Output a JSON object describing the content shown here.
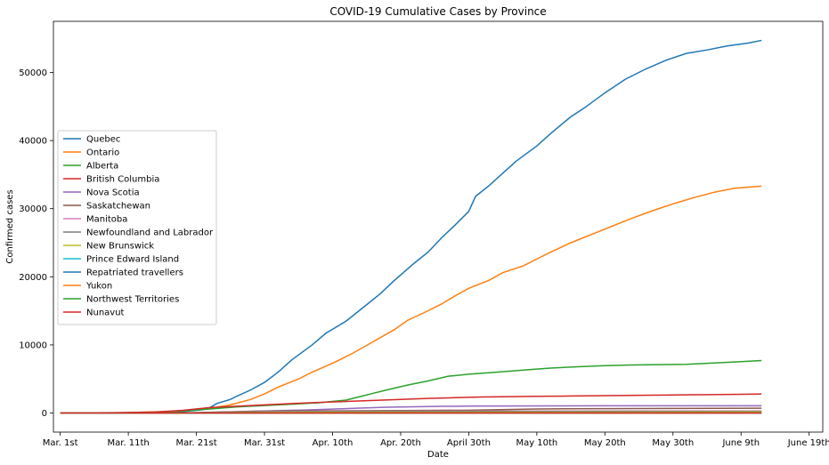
{
  "chart_data": {
    "type": "line",
    "title": "COVID-19 Cumulative Cases by Province",
    "xlabel": "Date",
    "ylabel": "Confirmed cases",
    "grid": false,
    "legend_position": "center-left",
    "xlim": [
      -1,
      112
    ],
    "ylim": [
      -2800,
      57500
    ],
    "x_ticks": [
      {
        "x": 0,
        "label": "Mar. 1st"
      },
      {
        "x": 10,
        "label": "Mar. 11th"
      },
      {
        "x": 20,
        "label": "Mar. 21st"
      },
      {
        "x": 30,
        "label": "Mar. 31st"
      },
      {
        "x": 40,
        "label": "Apr. 10th"
      },
      {
        "x": 50,
        "label": "Apr. 20th"
      },
      {
        "x": 60,
        "label": "April 30th"
      },
      {
        "x": 70,
        "label": "May 10th"
      },
      {
        "x": 80,
        "label": "May 20th"
      },
      {
        "x": 90,
        "label": "May 30th"
      },
      {
        "x": 100,
        "label": "June 9th"
      },
      {
        "x": 110,
        "label": "June 19th"
      }
    ],
    "y_ticks": [
      0,
      10000,
      20000,
      30000,
      40000,
      50000
    ],
    "series": [
      {
        "name": "Quebec",
        "color": "#1f77b4",
        "points": [
          [
            0,
            0
          ],
          [
            10,
            50
          ],
          [
            18,
            200
          ],
          [
            21,
            500
          ],
          [
            22,
            800
          ],
          [
            23,
            1400
          ],
          [
            25,
            2000
          ],
          [
            26,
            2500
          ],
          [
            28,
            3400
          ],
          [
            30,
            4500
          ],
          [
            32,
            6000
          ],
          [
            34,
            7800
          ],
          [
            37,
            10000
          ],
          [
            39,
            11700
          ],
          [
            42,
            13500
          ],
          [
            45,
            15900
          ],
          [
            47,
            17500
          ],
          [
            49,
            19400
          ],
          [
            52,
            22000
          ],
          [
            54,
            23600
          ],
          [
            56,
            25700
          ],
          [
            58,
            27600
          ],
          [
            60,
            29600
          ],
          [
            61,
            31800
          ],
          [
            63,
            33400
          ],
          [
            65,
            35200
          ],
          [
            67,
            37000
          ],
          [
            70,
            39200
          ],
          [
            72,
            41000
          ],
          [
            75,
            43500
          ],
          [
            77,
            44800
          ],
          [
            80,
            47000
          ],
          [
            83,
            49000
          ],
          [
            86,
            50500
          ],
          [
            89,
            51800
          ],
          [
            92,
            52800
          ],
          [
            95,
            53300
          ],
          [
            98,
            53900
          ],
          [
            101,
            54300
          ],
          [
            103,
            54700
          ]
        ]
      },
      {
        "name": "Ontario",
        "color": "#ff7f0e",
        "points": [
          [
            0,
            0
          ],
          [
            10,
            50
          ],
          [
            18,
            300
          ],
          [
            22,
            700
          ],
          [
            25,
            1200
          ],
          [
            28,
            2000
          ],
          [
            30,
            2800
          ],
          [
            32,
            3800
          ],
          [
            35,
            5000
          ],
          [
            37,
            6000
          ],
          [
            40,
            7300
          ],
          [
            43,
            8800
          ],
          [
            46,
            10500
          ],
          [
            49,
            12200
          ],
          [
            51,
            13600
          ],
          [
            54,
            15000
          ],
          [
            56,
            16000
          ],
          [
            58,
            17200
          ],
          [
            60,
            18300
          ],
          [
            63,
            19500
          ],
          [
            65,
            20600
          ],
          [
            68,
            21600
          ],
          [
            70,
            22600
          ],
          [
            72,
            23600
          ],
          [
            75,
            25000
          ],
          [
            78,
            26200
          ],
          [
            81,
            27400
          ],
          [
            84,
            28600
          ],
          [
            87,
            29700
          ],
          [
            90,
            30700
          ],
          [
            93,
            31600
          ],
          [
            96,
            32400
          ],
          [
            99,
            33000
          ],
          [
            103,
            33300
          ]
        ]
      },
      {
        "name": "Alberta",
        "color": "#2ca02c",
        "points": [
          [
            0,
            0
          ],
          [
            12,
            50
          ],
          [
            18,
            300
          ],
          [
            22,
            600
          ],
          [
            26,
            900
          ],
          [
            30,
            1100
          ],
          [
            34,
            1300
          ],
          [
            38,
            1500
          ],
          [
            42,
            1900
          ],
          [
            44,
            2400
          ],
          [
            46,
            2900
          ],
          [
            48,
            3400
          ],
          [
            51,
            4100
          ],
          [
            54,
            4700
          ],
          [
            57,
            5400
          ],
          [
            60,
            5700
          ],
          [
            64,
            6000
          ],
          [
            68,
            6300
          ],
          [
            72,
            6600
          ],
          [
            76,
            6800
          ],
          [
            80,
            6950
          ],
          [
            84,
            7050
          ],
          [
            88,
            7100
          ],
          [
            92,
            7150
          ],
          [
            96,
            7350
          ],
          [
            100,
            7550
          ],
          [
            103,
            7700
          ]
        ]
      },
      {
        "name": "British Columbia",
        "color": "#d62728",
        "points": [
          [
            0,
            0
          ],
          [
            8,
            50
          ],
          [
            14,
            150
          ],
          [
            18,
            400
          ],
          [
            22,
            800
          ],
          [
            26,
            1000
          ],
          [
            30,
            1200
          ],
          [
            34,
            1400
          ],
          [
            38,
            1550
          ],
          [
            42,
            1700
          ],
          [
            46,
            1850
          ],
          [
            50,
            2000
          ],
          [
            54,
            2150
          ],
          [
            58,
            2250
          ],
          [
            62,
            2350
          ],
          [
            66,
            2400
          ],
          [
            70,
            2450
          ],
          [
            75,
            2500
          ],
          [
            80,
            2550
          ],
          [
            85,
            2600
          ],
          [
            90,
            2650
          ],
          [
            95,
            2700
          ],
          [
            100,
            2750
          ],
          [
            103,
            2800
          ]
        ]
      },
      {
        "name": "Nova Scotia",
        "color": "#9467bd",
        "points": [
          [
            0,
            0
          ],
          [
            16,
            10
          ],
          [
            20,
            50
          ],
          [
            24,
            150
          ],
          [
            28,
            250
          ],
          [
            32,
            350
          ],
          [
            36,
            450
          ],
          [
            40,
            580
          ],
          [
            44,
            720
          ],
          [
            48,
            850
          ],
          [
            52,
            920
          ],
          [
            56,
            980
          ],
          [
            60,
            1010
          ],
          [
            66,
            1040
          ],
          [
            72,
            1055
          ],
          [
            80,
            1060
          ],
          [
            90,
            1062
          ],
          [
            103,
            1063
          ]
        ]
      },
      {
        "name": "Saskatchewan",
        "color": "#8c564b",
        "points": [
          [
            0,
            0
          ],
          [
            16,
            10
          ],
          [
            20,
            50
          ],
          [
            24,
            150
          ],
          [
            28,
            250
          ],
          [
            32,
            300
          ],
          [
            40,
            330
          ],
          [
            50,
            360
          ],
          [
            60,
            420
          ],
          [
            70,
            600
          ],
          [
            80,
            650
          ],
          [
            90,
            680
          ],
          [
            103,
            700
          ]
        ]
      },
      {
        "name": "Manitoba",
        "color": "#e377c2",
        "points": [
          [
            0,
            0
          ],
          [
            16,
            10
          ],
          [
            22,
            60
          ],
          [
            26,
            120
          ],
          [
            30,
            200
          ],
          [
            36,
            250
          ],
          [
            44,
            270
          ],
          [
            60,
            280
          ],
          [
            80,
            290
          ],
          [
            103,
            300
          ]
        ]
      },
      {
        "name": "Newfoundland and Labrador",
        "color": "#7f7f7f",
        "points": [
          [
            0,
            0
          ],
          [
            16,
            5
          ],
          [
            22,
            50
          ],
          [
            26,
            130
          ],
          [
            30,
            190
          ],
          [
            36,
            230
          ],
          [
            44,
            250
          ],
          [
            60,
            258
          ],
          [
            80,
            260
          ],
          [
            103,
            261
          ]
        ]
      },
      {
        "name": "New Brunswick",
        "color": "#bcbd22",
        "points": [
          [
            0,
            0
          ],
          [
            16,
            5
          ],
          [
            22,
            40
          ],
          [
            28,
            90
          ],
          [
            36,
            115
          ],
          [
            44,
            118
          ],
          [
            60,
            120
          ],
          [
            80,
            125
          ],
          [
            103,
            160
          ]
        ]
      },
      {
        "name": "Prince Edward Island",
        "color": "#17becf",
        "points": [
          [
            0,
            0
          ],
          [
            20,
            3
          ],
          [
            30,
            20
          ],
          [
            40,
            26
          ],
          [
            60,
            27
          ],
          [
            103,
            27
          ]
        ]
      },
      {
        "name": "Repatriated travellers",
        "color": "#1f77b4",
        "points": [
          [
            0,
            0
          ],
          [
            10,
            10
          ],
          [
            20,
            13
          ],
          [
            103,
            13
          ]
        ]
      },
      {
        "name": "Yukon",
        "color": "#ff7f0e",
        "points": [
          [
            0,
            0
          ],
          [
            22,
            2
          ],
          [
            30,
            8
          ],
          [
            40,
            11
          ],
          [
            103,
            11
          ]
        ]
      },
      {
        "name": "Northwest Territories",
        "color": "#2ca02c",
        "points": [
          [
            0,
            0
          ],
          [
            22,
            1
          ],
          [
            30,
            5
          ],
          [
            103,
            5
          ]
        ]
      },
      {
        "name": "Nunavut",
        "color": "#d62728",
        "points": [
          [
            0,
            0
          ],
          [
            103,
            0
          ]
        ]
      }
    ]
  }
}
